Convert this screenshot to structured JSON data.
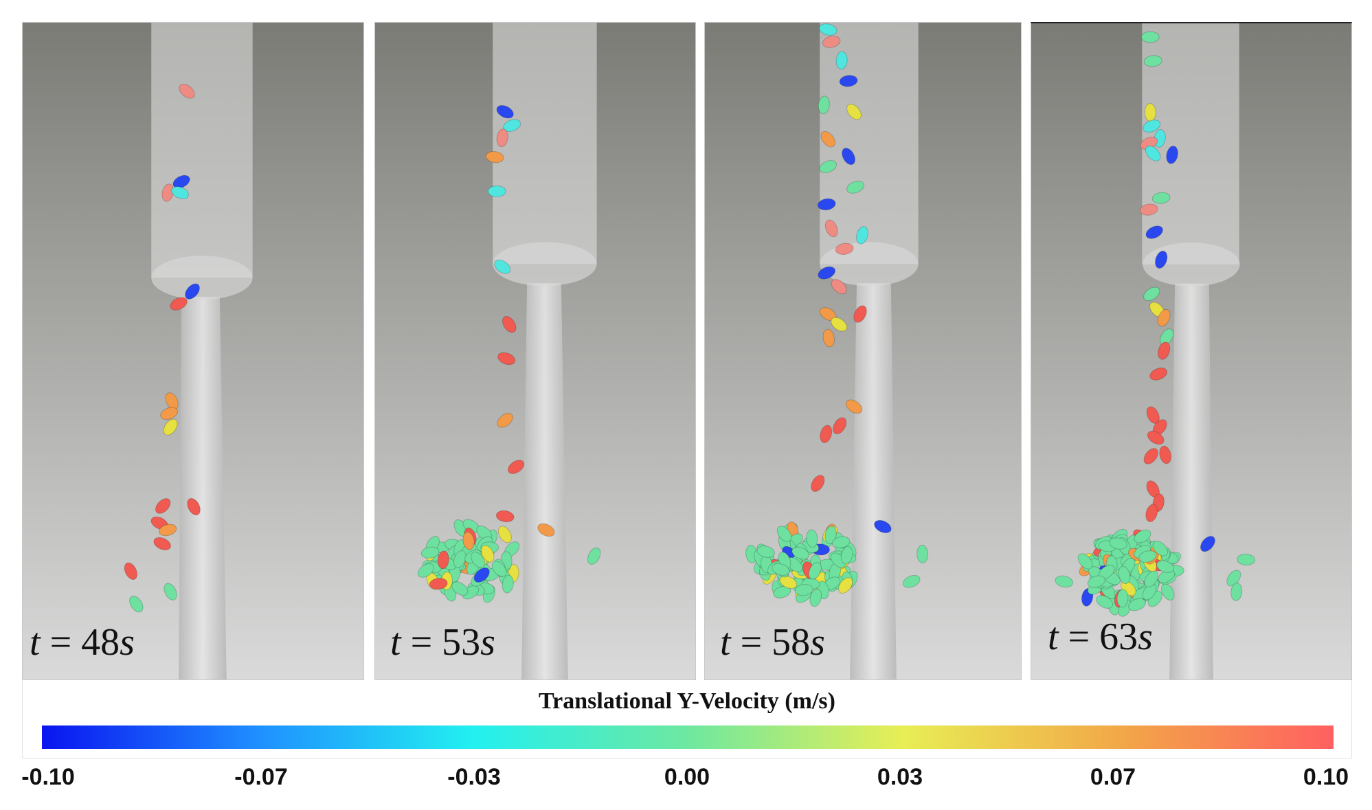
{
  "panels": [
    {
      "time_var": "t",
      "equals": "=",
      "value": "48",
      "unit": "s"
    },
    {
      "time_var": "t",
      "equals": "=",
      "value": "53",
      "unit": "s"
    },
    {
      "time_var": "t",
      "equals": "=",
      "value": "58",
      "unit": "s"
    },
    {
      "time_var": "t",
      "equals": "=",
      "value": "63",
      "unit": "s"
    }
  ],
  "colorbar": {
    "title": "Translational Y-Velocity (m/s)",
    "min": -0.1,
    "max": 0.1,
    "ticks": [
      "-0.10",
      "-0.07",
      "-0.03",
      "0.00",
      "0.03",
      "0.07",
      "0.10"
    ],
    "colors": [
      "#0a14f0",
      "#1f8fff",
      "#22f0f0",
      "#6ee8a0",
      "#e8ee55",
      "#f2a848",
      "#ff6060"
    ]
  },
  "colors": {
    "background_top": "#7d7d78",
    "background_bottom": "#d8d8d8",
    "tube": "#e2e2e2"
  }
}
